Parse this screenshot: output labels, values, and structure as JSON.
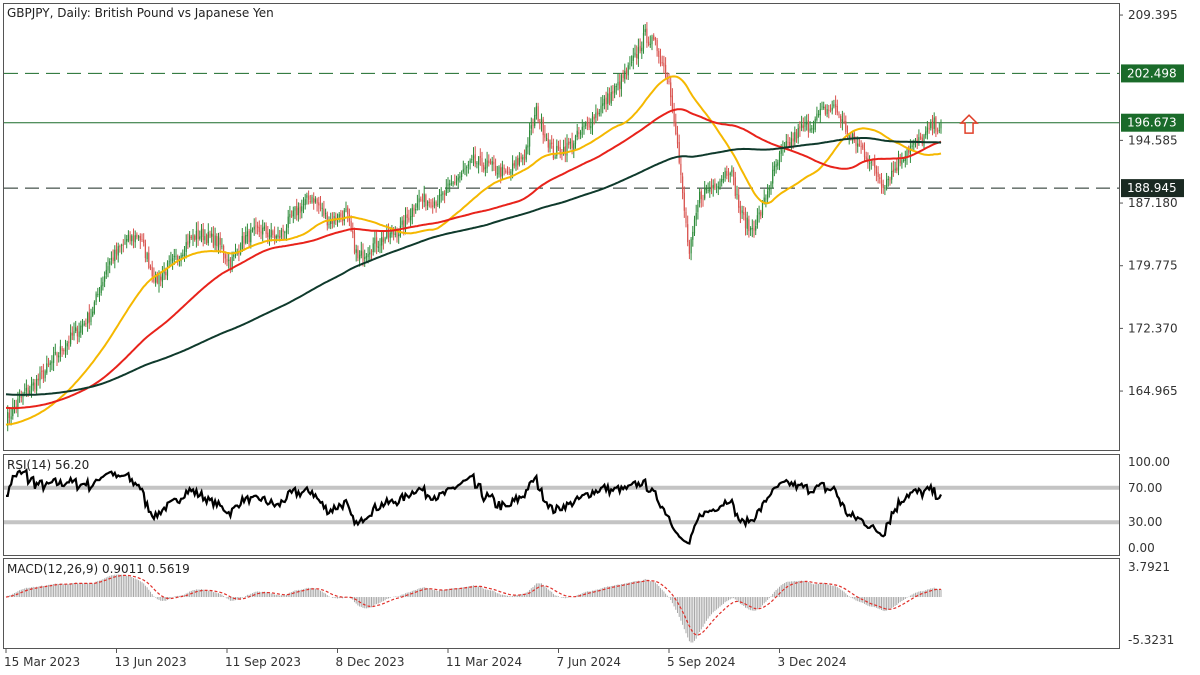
{
  "chart_data": {
    "type": "line",
    "title": "GBPJPY, Daily:  British Pound vs Japanese Yen",
    "price_panel": {
      "ylim": [
        158.0,
        210.7
      ],
      "y_ticks": [
        "209.395",
        "194.585",
        "187.180",
        "179.775",
        "172.370",
        "164.965"
      ],
      "levels": [
        {
          "value": 202.498,
          "label": "202.498",
          "style": "dashed",
          "color": "#1a6b2a"
        },
        {
          "value": 196.673,
          "label": "196.673",
          "style": "solid",
          "color": "#1a6b2a"
        },
        {
          "value": 188.945,
          "label": "188.945",
          "style": "dashed",
          "color": "#1a2a22"
        }
      ],
      "arrow": {
        "direction": "up",
        "color": "#e0402a",
        "x_index": 1.03,
        "value": 196.5
      },
      "close_anchors": [
        [
          0,
          161.5
        ],
        [
          8,
          164.0
        ],
        [
          20,
          166.5
        ],
        [
          35,
          170.5
        ],
        [
          50,
          174.0
        ],
        [
          60,
          180.0
        ],
        [
          70,
          182.5
        ],
        [
          78,
          183.5
        ],
        [
          88,
          178.0
        ],
        [
          100,
          180.5
        ],
        [
          108,
          183.0
        ],
        [
          115,
          183.5
        ],
        [
          125,
          182.5
        ],
        [
          132,
          180.0
        ],
        [
          140,
          183.0
        ],
        [
          150,
          184.0
        ],
        [
          160,
          183.0
        ],
        [
          170,
          186.0
        ],
        [
          180,
          188.0
        ],
        [
          190,
          185.0
        ],
        [
          200,
          186.0
        ],
        [
          207,
          180.5
        ],
        [
          214,
          182.0
        ],
        [
          222,
          183.0
        ],
        [
          232,
          184.0
        ],
        [
          242,
          187.5
        ],
        [
          255,
          187.5
        ],
        [
          265,
          190.0
        ],
        [
          275,
          192.0
        ],
        [
          285,
          191.5
        ],
        [
          295,
          190.5
        ],
        [
          305,
          193.0
        ],
        [
          312,
          198.0
        ],
        [
          322,
          193.0
        ],
        [
          332,
          194.0
        ],
        [
          340,
          196.0
        ],
        [
          350,
          198.5
        ],
        [
          360,
          201.0
        ],
        [
          368,
          203.5
        ],
        [
          376,
          207.0
        ],
        [
          383,
          205.5
        ],
        [
          390,
          201.5
        ],
        [
          394,
          196.0
        ],
        [
          398,
          188.0
        ],
        [
          402,
          181.0
        ],
        [
          408,
          188.0
        ],
        [
          414,
          189.0
        ],
        [
          420,
          190.0
        ],
        [
          426,
          191.5
        ],
        [
          432,
          186.0
        ],
        [
          438,
          184.0
        ],
        [
          444,
          186.0
        ],
        [
          450,
          190.0
        ],
        [
          456,
          193.0
        ],
        [
          462,
          194.5
        ],
        [
          468,
          196.0
        ],
        [
          474,
          196.5
        ],
        [
          480,
          198.0
        ],
        [
          488,
          198.5
        ],
        [
          496,
          195.0
        ],
        [
          504,
          193.5
        ],
        [
          510,
          191.5
        ],
        [
          516,
          189.5
        ],
        [
          522,
          191.0
        ],
        [
          530,
          193.5
        ],
        [
          538,
          194.5
        ],
        [
          546,
          196.5
        ],
        [
          550,
          196.0
        ]
      ],
      "moving_averages": [
        {
          "name": "MA 50",
          "color": "#f5b800"
        },
        {
          "name": "MA 100",
          "color": "#e8231b"
        },
        {
          "name": "MA 200",
          "color": "#0f3a2c"
        }
      ]
    },
    "rsi_panel": {
      "label": "RSI(14) 56.20",
      "ylim": [
        -8,
        108
      ],
      "y_ticks": [
        "100.00",
        "70.00",
        "30.00",
        "0.00"
      ],
      "bands": [
        70,
        30
      ]
    },
    "macd_panel": {
      "label": "MACD(12,26,9) 0.9011 0.5619",
      "y_ticks": [
        "3.7921",
        "-5.3231"
      ],
      "range": [
        -5.3231,
        3.7921
      ]
    },
    "x_axis": {
      "labels": [
        "15 Mar 2023",
        "13 Jun 2023",
        "11 Sep 2023",
        "8 Dec 2023",
        "11 Mar 2024",
        "7 Jun 2024",
        "5 Sep 2024",
        "3 Dec 2024"
      ],
      "label_index": [
        0,
        65,
        130,
        195,
        260,
        325,
        390,
        455
      ]
    },
    "colors": {
      "bull": "#2e8b3a",
      "bear": "#d9534f",
      "frame": "#555555",
      "grid": "#cfcfcf",
      "level_box": "#1a6b2a",
      "level_box_dark": "#1a2a22"
    }
  }
}
